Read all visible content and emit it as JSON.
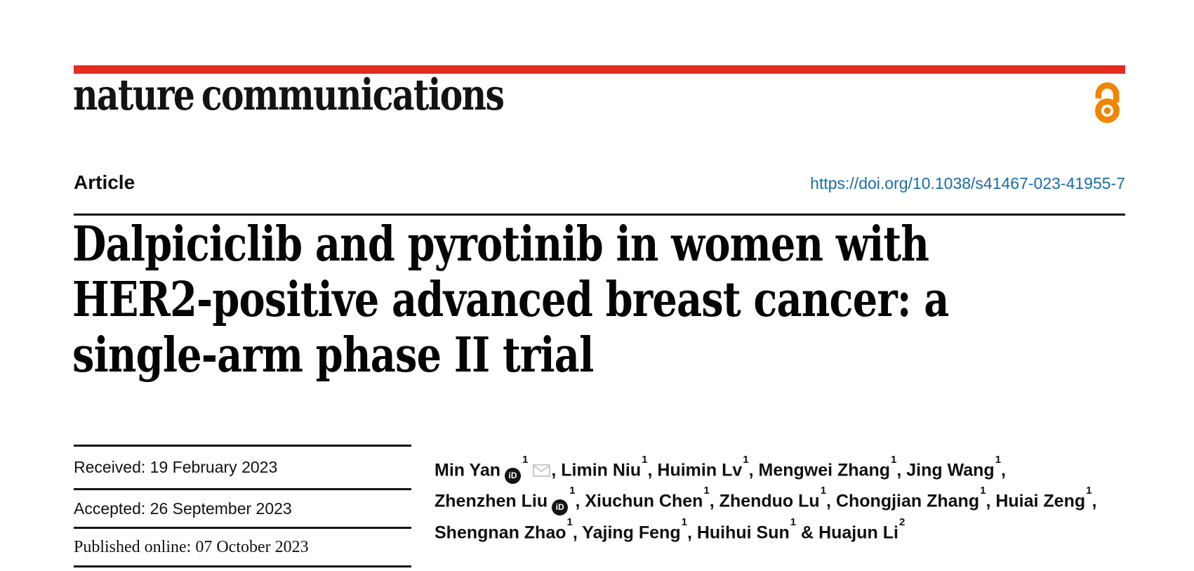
{
  "journal": {
    "name": "nature communications"
  },
  "brand": {
    "bar_red": "#e32b20",
    "link_blue": "#1b6ca8",
    "open_access_orange": "#f08500",
    "text_black": "#141414"
  },
  "icons": {
    "open_access": "open-padlock",
    "orcid": "iD",
    "email": "envelope"
  },
  "article": {
    "kind_label": "Article",
    "doi": "https://doi.org/10.1038/s41467-023-41955-7",
    "title_line1": "Dalpiciclib and pyrotinib in women with",
    "title_line2": "HER2-positive advanced breast cancer: a",
    "title_line3": "single-arm phase II trial"
  },
  "history": {
    "received": "Received: 19 February 2023",
    "accepted": "Accepted: 26 September 2023",
    "published": "Published online: 07 October 2023"
  },
  "authors": {
    "lines": [
      [
        {
          "t": "name",
          "v": "Min Yan"
        },
        {
          "t": "orcid"
        },
        {
          "t": "sup",
          "v": "1"
        },
        {
          "t": "mail"
        },
        {
          "t": "text",
          "v": ", "
        },
        {
          "t": "name",
          "v": "Limin Niu"
        },
        {
          "t": "sup",
          "v": "1"
        },
        {
          "t": "text",
          "v": ", "
        },
        {
          "t": "name",
          "v": "Huimin Lv"
        },
        {
          "t": "sup",
          "v": "1"
        },
        {
          "t": "text",
          "v": ", "
        },
        {
          "t": "name",
          "v": "Mengwei Zhang"
        },
        {
          "t": "sup",
          "v": "1"
        },
        {
          "t": "text",
          "v": ", "
        },
        {
          "t": "name",
          "v": "Jing Wang"
        },
        {
          "t": "sup",
          "v": "1"
        },
        {
          "t": "text",
          "v": ","
        }
      ],
      [
        {
          "t": "name",
          "v": "Zhenzhen Liu"
        },
        {
          "t": "orcid"
        },
        {
          "t": "sup",
          "v": "1"
        },
        {
          "t": "text",
          "v": ", "
        },
        {
          "t": "name",
          "v": "Xiuchun Chen"
        },
        {
          "t": "sup",
          "v": "1"
        },
        {
          "t": "text",
          "v": ", "
        },
        {
          "t": "name",
          "v": "Zhenduo Lu"
        },
        {
          "t": "sup",
          "v": "1"
        },
        {
          "t": "text",
          "v": ", "
        },
        {
          "t": "name",
          "v": "Chongjian Zhang"
        },
        {
          "t": "sup",
          "v": "1"
        },
        {
          "t": "text",
          "v": ", "
        },
        {
          "t": "name",
          "v": "Huiai Zeng"
        },
        {
          "t": "sup",
          "v": "1"
        },
        {
          "t": "text",
          "v": ","
        }
      ],
      [
        {
          "t": "name",
          "v": "Shengnan Zhao"
        },
        {
          "t": "sup",
          "v": "1"
        },
        {
          "t": "text",
          "v": ", "
        },
        {
          "t": "name",
          "v": "Yajing Feng"
        },
        {
          "t": "sup",
          "v": "1"
        },
        {
          "t": "text",
          "v": ", "
        },
        {
          "t": "name",
          "v": "Huihui Sun"
        },
        {
          "t": "sup",
          "v": "1"
        },
        {
          "t": "text",
          "v": " & "
        },
        {
          "t": "name",
          "v": "Huajun Li"
        },
        {
          "t": "sup",
          "v": "2"
        }
      ]
    ]
  }
}
